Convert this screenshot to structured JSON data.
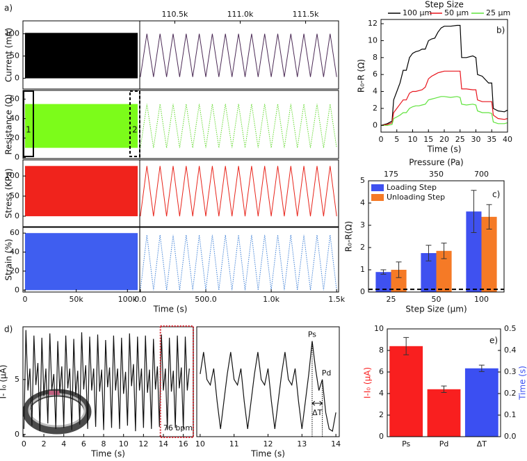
{
  "chart_data": [
    {
      "type": "strips",
      "panel_label": "a)",
      "xlabel": "Time (s)",
      "xlim": [
        -2000,
        112000
      ],
      "xticks": [
        0,
        {
          "value": 50000,
          "label": "50k"
        },
        {
          "value": 100000,
          "label": "100k"
        }
      ],
      "x2lim": [
        -5,
        1515
      ],
      "x2ticks": [
        {
          "value": 0,
          "label": "0.0"
        },
        {
          "value": 500,
          "label": "500.0"
        },
        {
          "value": 1000,
          "label": "1.0k"
        },
        {
          "value": 1500,
          "label": "1.5k"
        }
      ],
      "toplim": [
        110232,
        111752
      ],
      "topticks": [
        {
          "value": 110500,
          "label": "110.5k"
        },
        {
          "value": 111000,
          "label": "111.0k"
        },
        {
          "value": 111500,
          "label": "111.5k"
        }
      ],
      "band_x": [
        0,
        110000
      ],
      "x2": [
        0,
        50,
        100,
        150,
        200,
        250,
        300,
        350,
        400,
        450,
        500,
        550,
        600,
        650,
        700,
        750,
        800,
        850,
        900,
        950,
        1000,
        1050,
        1100,
        1150,
        1200,
        1250,
        1300,
        1350,
        1400,
        1450,
        1500
      ],
      "strips": [
        {
          "ylabel": "Current (mA)",
          "ylim": [
            -24,
            129
          ],
          "yticks": [
            0,
            50,
            100
          ],
          "color": "#000000",
          "line_color": "#4b2a55",
          "band": [
            0,
            102
          ],
          "values": [
            3,
            100,
            3,
            100,
            3,
            100,
            3,
            100,
            3,
            100,
            3,
            100,
            3,
            100,
            3,
            100,
            3,
            100,
            3,
            100,
            3,
            100,
            3,
            100,
            3,
            100,
            3,
            100,
            3,
            100,
            3
          ]
        },
        {
          "ylabel": "Resistance (Ω)",
          "ylim": [
            -1,
            69
          ],
          "yticks": [
            0,
            20,
            40,
            60
          ],
          "color": "#7cfc1a",
          "line_color": "#5fd82a",
          "dotted": true,
          "band": [
            10,
            55
          ],
          "boxes": [
            "1",
            "2"
          ],
          "values": [
            10,
            55,
            10,
            55,
            10,
            55,
            10,
            55,
            10,
            55,
            10,
            55,
            10,
            55,
            10,
            55,
            10,
            55,
            10,
            55,
            10,
            55,
            10,
            55,
            10,
            55,
            10,
            55,
            10,
            55,
            10
          ]
        },
        {
          "ylabel": "Stress (KPa)",
          "ylim": [
            -26,
            140
          ],
          "yticks": [
            0,
            50,
            100
          ],
          "color": "#f0231c",
          "line_color": "#e8251c",
          "band": [
            0,
            125
          ],
          "values": [
            0,
            125,
            0,
            125,
            0,
            125,
            0,
            125,
            0,
            125,
            0,
            125,
            0,
            125,
            0,
            125,
            0,
            125,
            0,
            125,
            0,
            125,
            0,
            125,
            0,
            125,
            0,
            125,
            0,
            125,
            0
          ]
        },
        {
          "ylabel": "Strain (%)",
          "ylim": [
            -2,
            66
          ],
          "yticks": [
            0,
            20,
            40,
            60
          ],
          "color": "#3f5ef0",
          "line_color": "#3d7fd6",
          "dotted": true,
          "band": [
            0,
            60
          ],
          "values": [
            0,
            58,
            0,
            58,
            0,
            58,
            0,
            58,
            0,
            58,
            0,
            58,
            0,
            58,
            0,
            58,
            0,
            58,
            0,
            58,
            0,
            58,
            0,
            58,
            0,
            58,
            0,
            58,
            0,
            58,
            0
          ]
        }
      ]
    },
    {
      "type": "line",
      "panel_label": "b)",
      "legend_title": "Step Size",
      "xlabel": "Time (s)",
      "ylabel": "R₀-R (Ω)",
      "xlim": [
        0,
        40
      ],
      "xticks": [
        0,
        5,
        10,
        15,
        20,
        25,
        30,
        35,
        40
      ],
      "ylim": [
        -0.8,
        12.5
      ],
      "yticks": [
        0,
        2,
        4,
        6,
        8,
        10,
        12
      ],
      "x": [
        0,
        2,
        3.5,
        4,
        5,
        6,
        7,
        8,
        9,
        10,
        11,
        12,
        13,
        14,
        15,
        16,
        17,
        18,
        19,
        20,
        22,
        24,
        25,
        25.5,
        27,
        29,
        30,
        30.5,
        32,
        34,
        35,
        35.5,
        37,
        39,
        40
      ],
      "series": [
        {
          "name": "100 μm",
          "color": "#000000",
          "values": [
            0,
            0.2,
            0.5,
            3,
            4,
            5,
            6.5,
            6.5,
            8,
            8.5,
            8.7,
            8.8,
            9,
            9,
            10,
            10.2,
            10.3,
            11,
            11.5,
            11.7,
            11.7,
            11.8,
            11.8,
            8,
            8,
            8.2,
            8,
            6,
            5.8,
            5,
            5,
            2,
            1.7,
            1.6,
            1.8
          ]
        },
        {
          "name": "50 μm",
          "color": "#e8141c",
          "values": [
            0,
            0.1,
            0.3,
            1.5,
            2,
            2.5,
            3,
            3,
            3.8,
            4,
            4,
            4.1,
            4.2,
            4.5,
            5.5,
            5.8,
            6,
            6.2,
            6.3,
            6.4,
            6.4,
            6.4,
            6.4,
            4.3,
            4.3,
            4.2,
            4.2,
            3,
            2.8,
            2.8,
            2.8,
            1.2,
            0.8,
            0.7,
            0.8
          ]
        },
        {
          "name": "25 μm",
          "color": "#5fe33c",
          "values": [
            0,
            0,
            0.1,
            0.8,
            1,
            1.2,
            1.5,
            1.5,
            2,
            2.2,
            2.3,
            2.3,
            2.4,
            2.5,
            3,
            3.1,
            3.2,
            3.3,
            3.4,
            3.4,
            3.3,
            3.4,
            3.3,
            2.5,
            2.4,
            2.5,
            2.4,
            1.7,
            1.5,
            1.5,
            1.4,
            0.4,
            0.2,
            0.2,
            0.3
          ]
        }
      ]
    },
    {
      "type": "bar",
      "panel_label": "c)",
      "top_label": "Pressure (Pa)",
      "top_categories": [
        "175",
        "350",
        "700"
      ],
      "xlabel": "Step Size (μm)",
      "ylabel": "R₀-R(Ω)",
      "categories": [
        "25",
        "50",
        "100"
      ],
      "ylim": [
        0,
        5
      ],
      "yticks": [
        0,
        1,
        2,
        3,
        4,
        5
      ],
      "reference_line": 0.12,
      "series": [
        {
          "name": "Loading Step",
          "color": "#3f51f0",
          "values": [
            0.9,
            1.75,
            3.62
          ],
          "errors": [
            0.1,
            0.35,
            0.95
          ]
        },
        {
          "name": "Unloading Step",
          "color": "#f57a26",
          "values": [
            1.0,
            1.85,
            3.38
          ],
          "errors": [
            0.35,
            0.35,
            0.55
          ]
        }
      ]
    },
    {
      "type": "line",
      "panel_label": "d)",
      "xlabel": "Time (s)",
      "ylabel": "I- I₀ (μA)",
      "annotation": "76 bpm",
      "xlim": [
        -0.1,
        17
      ],
      "xticks": [
        0,
        2,
        4,
        6,
        8,
        10,
        12,
        14,
        16
      ],
      "ylim": [
        -0.2,
        9.8
      ],
      "yticks": [
        0,
        5
      ],
      "highlight": [
        13.7,
        17
      ],
      "color": "#111111",
      "x": [
        0,
        0.2,
        0.4,
        0.6,
        0.8,
        1,
        1.2,
        1.4,
        1.6,
        1.8,
        2,
        2.2,
        2.4,
        2.6,
        2.8,
        3,
        3.2,
        3.4,
        3.6,
        3.8,
        4,
        4.2,
        4.4,
        4.6,
        4.8,
        5,
        5.2,
        5.4,
        5.6,
        5.8,
        6,
        6.2,
        6.4,
        6.6,
        6.8,
        7,
        7.2,
        7.4,
        7.6,
        7.8,
        8,
        8.2,
        8.4,
        8.6,
        8.8,
        9,
        9.2,
        9.4,
        9.6,
        9.8,
        10,
        10.2,
        10.4,
        10.6,
        10.8,
        11,
        11.2,
        11.4,
        11.6,
        11.8,
        12,
        12.2,
        12.4,
        12.6,
        12.8,
        13,
        13.2,
        13.4,
        13.6,
        13.8,
        14,
        14.2,
        14.4,
        14.6,
        14.8,
        15,
        15.2,
        15.4,
        15.6,
        15.8,
        16,
        16.2,
        16.4,
        16.6
      ],
      "values": [
        0.5,
        9.5,
        4,
        6,
        0.8,
        9,
        4.5,
        6.5,
        0.3,
        8.8,
        3.5,
        6,
        1,
        9.2,
        4,
        5.5,
        0.5,
        8.5,
        3.8,
        6.2,
        0.6,
        9,
        4.2,
        6,
        0.4,
        8.7,
        3.6,
        5.8,
        0.9,
        9.3,
        4.1,
        6.3,
        0.5,
        8.9,
        4,
        6,
        0.7,
        9.1,
        3.9,
        5.9,
        0.4,
        8.6,
        4.3,
        6.1,
        0.6,
        9,
        4,
        6,
        0.5,
        8.8,
        3.7,
        5.7,
        0.8,
        9.2,
        4.4,
        6.4,
        0.3,
        8.9,
        4,
        6,
        0.6,
        9,
        3.8,
        5.9,
        0.5,
        8.7,
        4.1,
        6.2,
        0.7,
        9.1,
        4,
        6,
        0.4,
        8.8,
        3.9,
        5.8,
        0.6,
        9,
        4.2,
        6.1,
        0.5,
        8.9,
        4,
        6
      ]
    },
    {
      "type": "line",
      "xlabel": "Time (s)",
      "annotations": [
        "Ps",
        "Pd",
        "ΔT"
      ],
      "delta_t": [
        13.3,
        13.6
      ],
      "xlim": [
        9.9,
        14.1
      ],
      "xticks": [
        10,
        11,
        12,
        13,
        14
      ],
      "ylim": [
        -0.2,
        9.8
      ],
      "color": "#111111",
      "x": [
        10,
        10.1,
        10.2,
        10.3,
        10.4,
        10.5,
        10.6,
        10.7,
        10.8,
        10.9,
        11,
        11.1,
        11.2,
        11.3,
        11.4,
        11.5,
        11.6,
        11.7,
        11.8,
        11.9,
        12,
        12.1,
        12.2,
        12.3,
        12.4,
        12.5,
        12.6,
        12.7,
        12.8,
        12.9,
        13,
        13.1,
        13.2,
        13.3,
        13.4,
        13.5,
        13.6,
        13.7,
        13.8,
        13.9,
        14
      ],
      "values": [
        5.5,
        7.5,
        5,
        4.5,
        6,
        3,
        0.5,
        3,
        5.5,
        7.5,
        5,
        4.5,
        6,
        3,
        0.5,
        3,
        5.5,
        7.5,
        5,
        4.5,
        6,
        3,
        0.5,
        3,
        5.5,
        7.5,
        5,
        4.5,
        6,
        3,
        0.5,
        3,
        5.5,
        8.5,
        6,
        4,
        5,
        2,
        0.5,
        0.3,
        2
      ]
    },
    {
      "type": "bar",
      "panel_label": "e)",
      "ylabel": "I-I₀ (μA)",
      "ylabel_color": "#f91f1f",
      "y2label": "Time (s)",
      "y2label_color": "#3b4ff2",
      "categories": [
        "Ps",
        "Pd",
        "ΔT"
      ],
      "ylim": [
        0,
        10
      ],
      "yticks": [
        0,
        2,
        4,
        6,
        8,
        10
      ],
      "y2lim": [
        0,
        0.5
      ],
      "y2ticks": [
        {
          "value": 0,
          "label": "0.0"
        },
        0.1,
        0.2,
        0.3,
        0.4,
        0.5
      ],
      "series": [
        {
          "color": "#f91f1f",
          "values": [
            8.4,
            4.4,
            null
          ],
          "errors": [
            0.8,
            0.3,
            null
          ]
        },
        {
          "color": "#3b4ff2",
          "axis": "y2",
          "values": [
            null,
            null,
            0.317
          ],
          "errors": [
            null,
            null,
            0.015
          ]
        }
      ]
    }
  ]
}
